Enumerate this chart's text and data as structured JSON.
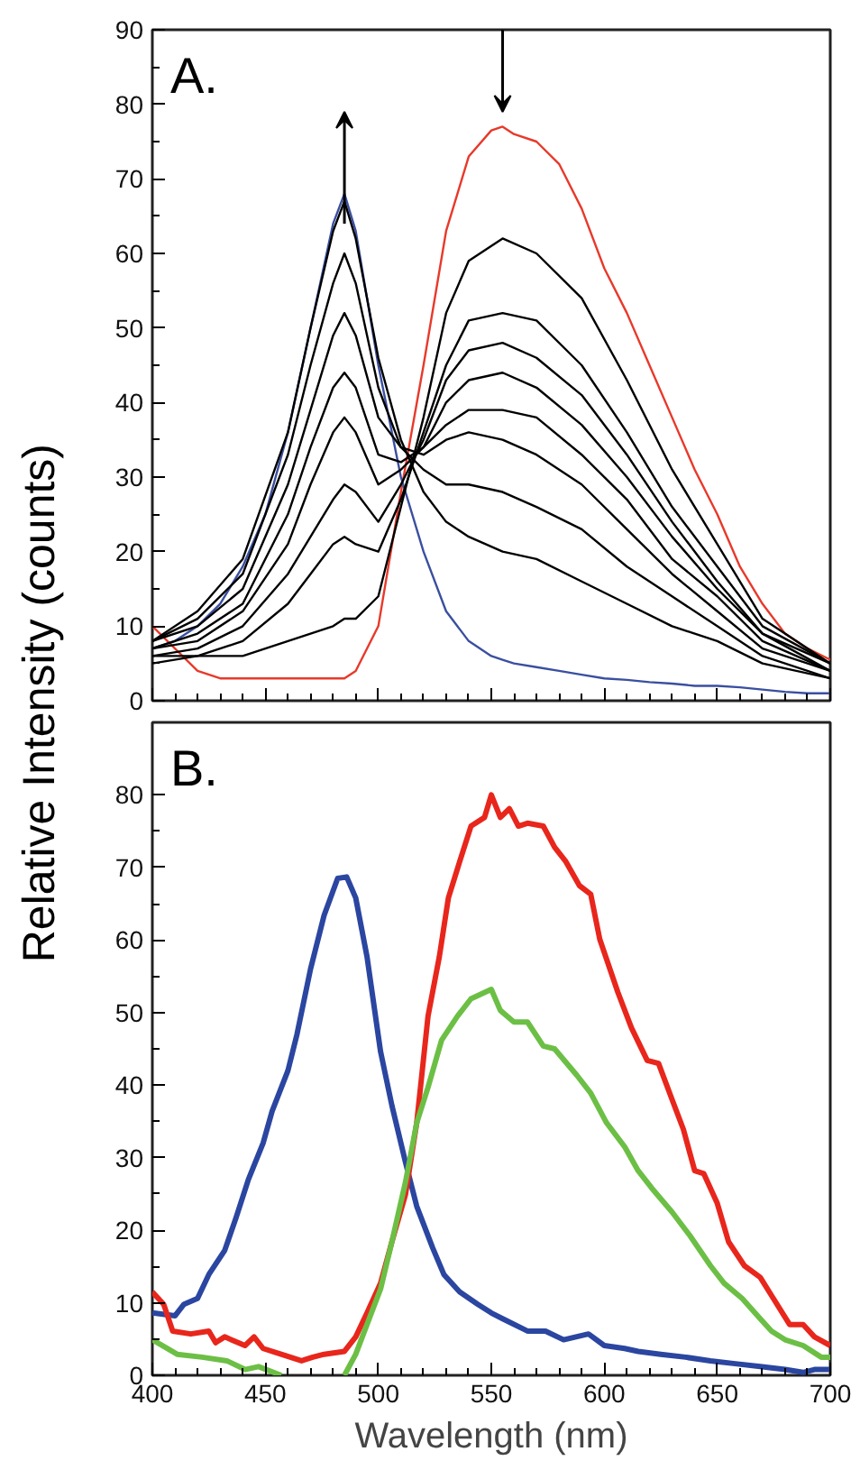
{
  "chart_data": [
    {
      "type": "line",
      "ylabel": "Relative Intensity (counts)",
      "annotations": [
        "A."
      ],
      "xlim": [
        400,
        700
      ],
      "ylim": [
        0,
        90
      ],
      "xticks": [
        400,
        450,
        500,
        550,
        600,
        650,
        700
      ],
      "yticks": [
        0,
        10,
        20,
        30,
        40,
        50,
        60,
        70,
        80,
        90
      ],
      "tick_labels": "y",
      "x": [
        400,
        410,
        420,
        430,
        440,
        450,
        460,
        470,
        480,
        485,
        490,
        500,
        510,
        520,
        530,
        540,
        550,
        555,
        560,
        570,
        580,
        590,
        600,
        610,
        620,
        630,
        640,
        650,
        660,
        670,
        680,
        690,
        700
      ],
      "series": [
        {
          "color": "#e8392a",
          "values": [
            10,
            7,
            4,
            3,
            3,
            3,
            3,
            3,
            3,
            3,
            4,
            10,
            28,
            45,
            63,
            73,
            76.5,
            77,
            76,
            75,
            72,
            66,
            58,
            52,
            45,
            38,
            31,
            25,
            18,
            13,
            9,
            7,
            5.5
          ]
        },
        {
          "color": "#3a4fa0",
          "values": [
            7,
            8,
            10,
            13,
            18,
            25,
            36,
            50,
            64,
            68,
            63,
            45,
            30,
            20,
            12,
            8,
            6,
            5.5,
            5,
            4.5,
            4,
            3.5,
            3,
            2.8,
            2.5,
            2.3,
            2,
            2,
            1.8,
            1.5,
            1.2,
            1,
            1
          ]
        },
        {
          "color": "#000000",
          "x": [
            400,
            420,
            440,
            460,
            470,
            480,
            485,
            490,
            500,
            510,
            520,
            530,
            540,
            555,
            570,
            590,
            610,
            630,
            650,
            670,
            700
          ],
          "values": [
            6,
            6,
            6,
            8,
            9,
            10,
            11,
            11,
            14,
            26,
            38,
            52,
            59,
            62,
            60,
            54,
            43,
            31,
            21,
            11,
            5
          ]
        },
        {
          "color": "#000000",
          "x": [
            400,
            420,
            440,
            460,
            470,
            480,
            485,
            490,
            500,
            510,
            520,
            530,
            540,
            555,
            570,
            590,
            610,
            630,
            650,
            670,
            700
          ],
          "values": [
            5,
            6,
            8,
            13,
            17,
            21,
            22,
            21,
            20,
            27,
            36,
            45,
            51,
            52,
            51,
            45,
            36,
            26,
            18,
            10,
            5
          ]
        },
        {
          "color": "#000000",
          "x": [
            400,
            420,
            440,
            460,
            470,
            480,
            485,
            490,
            500,
            510,
            520,
            530,
            540,
            555,
            570,
            590,
            610,
            630,
            650,
            670,
            700
          ],
          "values": [
            6,
            7,
            10,
            17,
            22,
            27,
            29,
            28,
            24,
            29,
            35,
            43,
            47,
            48,
            46,
            41,
            33,
            24,
            16,
            9,
            5
          ]
        },
        {
          "color": "#000000",
          "x": [
            400,
            420,
            440,
            460,
            470,
            480,
            485,
            490,
            500,
            510,
            520,
            530,
            540,
            555,
            570,
            590,
            610,
            630,
            650,
            670,
            700
          ],
          "values": [
            7,
            8,
            12,
            21,
            29,
            36,
            38,
            36,
            29,
            31,
            34,
            40,
            43,
            44,
            42,
            37,
            30,
            22,
            15,
            9,
            4
          ]
        },
        {
          "color": "#000000",
          "x": [
            400,
            420,
            440,
            460,
            470,
            480,
            485,
            490,
            500,
            510,
            520,
            530,
            540,
            555,
            570,
            590,
            610,
            630,
            650,
            670,
            700
          ],
          "values": [
            7,
            9,
            13,
            25,
            34,
            42,
            44,
            42,
            33,
            32,
            34,
            37,
            39,
            39,
            38,
            33,
            27,
            19,
            14,
            8,
            4
          ]
        },
        {
          "color": "#000000",
          "x": [
            400,
            420,
            440,
            460,
            470,
            480,
            485,
            490,
            500,
            510,
            520,
            530,
            540,
            555,
            570,
            590,
            610,
            630,
            650,
            670,
            700
          ],
          "values": [
            8,
            10,
            15,
            29,
            39,
            49,
            52,
            49,
            38,
            34,
            33,
            35,
            36,
            35,
            33,
            29,
            23,
            17,
            12,
            7,
            4
          ]
        },
        {
          "color": "#000000",
          "x": [
            400,
            420,
            440,
            460,
            470,
            480,
            485,
            490,
            500,
            510,
            520,
            530,
            540,
            555,
            570,
            590,
            610,
            630,
            650,
            670,
            700
          ],
          "values": [
            8,
            11,
            17,
            33,
            45,
            56,
            60,
            56,
            42,
            34,
            31,
            29,
            29,
            28,
            26,
            23,
            18,
            14,
            10,
            6,
            3
          ]
        },
        {
          "color": "#000000",
          "x": [
            400,
            420,
            440,
            460,
            470,
            480,
            485,
            490,
            500,
            510,
            520,
            530,
            540,
            555,
            570,
            590,
            610,
            630,
            650,
            670,
            700
          ],
          "values": [
            8,
            12,
            19,
            36,
            50,
            63,
            67,
            62,
            46,
            35,
            28,
            24,
            22,
            20,
            19,
            16,
            13,
            10,
            8,
            5,
            3
          ]
        }
      ]
    },
    {
      "type": "line",
      "xlabel": "Wavelength (nm)",
      "annotations": [
        "B."
      ],
      "xlim": [
        400,
        700
      ],
      "ylim": [
        0,
        90
      ],
      "xticks": [
        400,
        450,
        500,
        550,
        600,
        650,
        700
      ],
      "yticks": [
        0,
        10,
        20,
        30,
        40,
        50,
        60,
        70,
        80
      ],
      "series": [
        {
          "color": "#2b46a0",
          "x": [
            400,
            410,
            414,
            420,
            425,
            432,
            437,
            442.5,
            449,
            453,
            460,
            464,
            470,
            476,
            482,
            486,
            490,
            495,
            501,
            506,
            512,
            517,
            524,
            529,
            536,
            544,
            550,
            555,
            566,
            574,
            582,
            593,
            600,
            609,
            615,
            625,
            636,
            647,
            658,
            669,
            680,
            688,
            693,
            700
          ],
          "values": [
            8.6,
            8.2,
            9.8,
            10.6,
            13.9,
            17.2,
            21.7,
            27,
            32,
            36.4,
            42,
            47,
            56,
            63.4,
            68.5,
            68.7,
            65.8,
            57.7,
            44.6,
            37.2,
            29.4,
            23.3,
            17.6,
            13.9,
            11.5,
            9.8,
            8.6,
            7.8,
            6.1,
            6.1,
            4.9,
            5.7,
            4.1,
            3.7,
            3.3,
            2.9,
            2.5,
            2,
            1.6,
            1.2,
            0.8,
            0.4,
            0.8,
            0.8
          ]
        },
        {
          "color": "#e8261c",
          "x": [
            400,
            405,
            409,
            417,
            425,
            428,
            432,
            441,
            445,
            449,
            457,
            466,
            471,
            476,
            485,
            490,
            495,
            501,
            506,
            512,
            517,
            522,
            527,
            531,
            536,
            541,
            547,
            550,
            554,
            558,
            562,
            566,
            573,
            578,
            583,
            589,
            594,
            598,
            606,
            612,
            619,
            624,
            630,
            635,
            640,
            644,
            650,
            655,
            662,
            669,
            674,
            682,
            688,
            693,
            700
          ],
          "values": [
            11.5,
            9.8,
            6.1,
            5.7,
            6.1,
            4.5,
            5.3,
            4.1,
            5.3,
            3.7,
            2.9,
            2,
            2.5,
            2.9,
            3.3,
            5.3,
            8.6,
            12.7,
            18.4,
            24.9,
            34.8,
            49.5,
            57.7,
            65.8,
            70.8,
            75.7,
            76.9,
            80,
            76.9,
            78.1,
            75.7,
            76.1,
            75.7,
            72.8,
            70.8,
            67.5,
            66.3,
            60.1,
            52.8,
            47.9,
            43.4,
            43,
            38,
            33.9,
            28.2,
            27.8,
            23.7,
            18.4,
            15.1,
            13.5,
            11,
            7,
            7,
            5.3,
            4.1
          ]
        },
        {
          "color": "#6cbf45",
          "x": [
            400,
            411,
            422,
            433,
            441,
            447,
            457,
            471,
            485,
            490,
            495,
            501,
            506,
            512,
            517,
            522,
            528,
            535,
            541,
            550,
            554,
            560,
            566,
            573,
            578,
            588,
            594,
            601,
            609,
            615,
            621,
            630,
            638,
            647,
            653,
            661,
            669,
            674,
            680,
            688,
            696,
            700
          ],
          "values": [
            4.9,
            2.9,
            2.5,
            2,
            0.8,
            1.2,
            0,
            null,
            0,
            2.9,
            7,
            11.9,
            18.4,
            26.6,
            34.8,
            39.7,
            46.2,
            49.5,
            51.9,
            53.2,
            50.3,
            48.7,
            48.7,
            45.4,
            45,
            41.3,
            38.9,
            34.8,
            31.5,
            28.2,
            25.8,
            22.5,
            19.2,
            15.1,
            12.7,
            10.6,
            7.8,
            6.1,
            4.9,
            4.1,
            2.5,
            2.5
          ]
        }
      ]
    }
  ]
}
